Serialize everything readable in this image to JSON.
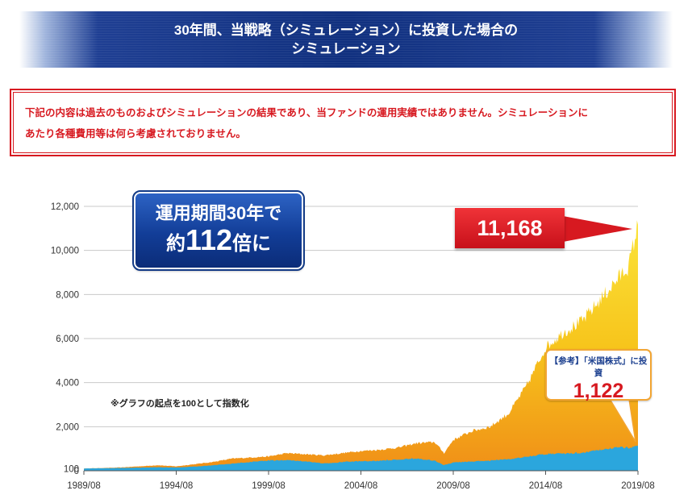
{
  "header": {
    "line1": "30年間、当戦略（シミュレーション）に投資した場合の",
    "line2": "シミュレーション"
  },
  "notice": {
    "text1": "下記の内容は過去のものおよびシミュレーションの結果であり、当ファンドの運用実績ではありません。シミュレーションに",
    "text2": "あたり各種費用等は何ら考慮されておりません。"
  },
  "callout": {
    "line1": "運用期間30年で",
    "prefix": "約",
    "multiple": "112",
    "suffix": "倍に"
  },
  "badge": {
    "value": "11,168"
  },
  "reference": {
    "title": "【参考】「米国株式」に投資",
    "value": "1,122"
  },
  "note": "※グラフの起点を100として指数化",
  "colors": {
    "strategy_top": "#f7d31a",
    "strategy_bottom": "#f39a18",
    "reference": "#2ba6dd",
    "accent": "#d71920"
  },
  "chart_data": {
    "type": "area",
    "ylim": [
      0,
      12000
    ],
    "y_ticks": [
      {
        "value": 0,
        "label": "0"
      },
      {
        "value": 100,
        "label": "100"
      },
      {
        "value": 2000,
        "label": "2,000"
      },
      {
        "value": 4000,
        "label": "4,000"
      },
      {
        "value": 6000,
        "label": "6,000"
      },
      {
        "value": 8000,
        "label": "8,000"
      },
      {
        "value": 10000,
        "label": "10,000"
      },
      {
        "value": 12000,
        "label": "12,000"
      }
    ],
    "x_ticks": [
      "1989/08",
      "1994/08",
      "1999/08",
      "2004/08",
      "2009/08",
      "2014/08",
      "2019/08"
    ],
    "series": [
      {
        "x": [
          "1989/08",
          "1991/08",
          "1993/08",
          "1994/08",
          "1995/08",
          "1996/08",
          "1997/08",
          "1998/08",
          "1999/08",
          "2000/08",
          "2001/08",
          "2002/08",
          "2003/08",
          "2004/08",
          "2005/08",
          "2006/08",
          "2007/08",
          "2008/08",
          "2009/02",
          "2009/08",
          "2010/08",
          "2011/08",
          "2012/08",
          "2013/08",
          "2014/08",
          "2015/08",
          "2016/08",
          "2017/08",
          "2018/08",
          "2019/02",
          "2019/08"
        ],
        "values": [
          100,
          150,
          250,
          200,
          300,
          400,
          550,
          600,
          650,
          800,
          750,
          700,
          800,
          900,
          950,
          1050,
          1250,
          1300,
          800,
          1400,
          1800,
          2000,
          2600,
          3900,
          5600,
          6300,
          6800,
          7800,
          8800,
          9300,
          11168
        ]
      },
      {
        "x": [
          "1989/08",
          "1991/08",
          "1993/08",
          "1994/08",
          "1995/08",
          "1996/08",
          "1997/08",
          "1998/08",
          "1999/08",
          "2000/08",
          "2001/08",
          "2002/08",
          "2003/08",
          "2004/08",
          "2005/08",
          "2006/08",
          "2007/08",
          "2008/08",
          "2009/02",
          "2009/08",
          "2010/08",
          "2011/08",
          "2012/08",
          "2013/08",
          "2014/08",
          "2015/08",
          "2016/08",
          "2017/08",
          "2018/08",
          "2019/02",
          "2019/08"
        ],
        "values": [
          100,
          130,
          160,
          150,
          190,
          250,
          320,
          400,
          470,
          480,
          430,
          330,
          400,
          430,
          450,
          510,
          560,
          450,
          250,
          380,
          420,
          460,
          520,
          640,
          760,
          780,
          820,
          950,
          1080,
          1050,
          1122
        ]
      }
    ]
  }
}
